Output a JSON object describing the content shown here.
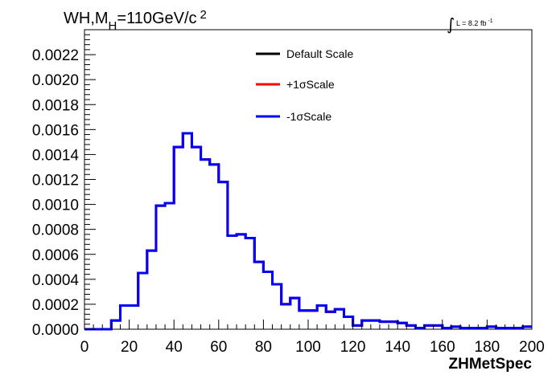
{
  "chart_data": {
    "type": "line",
    "title": "WH,M",
    "title_sub": "H",
    "title_rest": "=110GeV/c",
    "title_sup": "2",
    "lumi_label": "L = 8.2 fb",
    "lumi_sup": "-1",
    "xlabel": "ZHMetSpec",
    "ylabel": "",
    "xlim": [
      0,
      200
    ],
    "ylim": [
      0,
      0.0024
    ],
    "x_ticks": [
      0,
      20,
      40,
      60,
      80,
      100,
      120,
      140,
      160,
      180,
      200
    ],
    "x_tick_labels": [
      "0",
      "20",
      "40",
      "60",
      "80",
      "100",
      "120",
      "140",
      "160",
      "180",
      "200"
    ],
    "y_ticks": [
      0,
      0.0002,
      0.0004,
      0.0006,
      0.0008,
      0.001,
      0.0012,
      0.0014,
      0.0016,
      0.0018,
      0.002,
      0.0022
    ],
    "y_tick_labels": [
      "0.0000",
      "0.0002",
      "0.0004",
      "0.0006",
      "0.0008",
      "0.0010",
      "0.0012",
      "0.0014",
      "0.0016",
      "0.0018",
      "0.0020",
      "0.0022"
    ],
    "grid": false,
    "legend_position": "top-center",
    "bin_edges": [
      0,
      4,
      8,
      12,
      16,
      20,
      24,
      28,
      32,
      36,
      40,
      44,
      48,
      52,
      56,
      60,
      64,
      68,
      72,
      76,
      80,
      84,
      88,
      92,
      96,
      100,
      104,
      108,
      112,
      116,
      120,
      124,
      128,
      132,
      136,
      140,
      144,
      148,
      152,
      156,
      160,
      164,
      168,
      172,
      176,
      180,
      184,
      188,
      192,
      196,
      200
    ],
    "series": [
      {
        "name": "Default Scale",
        "color": "#000000",
        "values": [
          0,
          0,
          0,
          7e-05,
          0.00019,
          0.00019,
          0.00045,
          0.00063,
          0.00099,
          0.00101,
          0.00146,
          0.00157,
          0.00146,
          0.00136,
          0.00132,
          0.00118,
          0.00075,
          0.00076,
          0.00073,
          0.00054,
          0.00046,
          0.00036,
          0.0002,
          0.00025,
          0.00015,
          0.00015,
          0.00019,
          0.00014,
          0.00016,
          0.0001,
          3e-05,
          7e-05,
          7e-05,
          6e-05,
          6e-05,
          5e-05,
          3e-05,
          1e-05,
          3e-05,
          3e-05,
          1e-05,
          2e-05,
          1e-05,
          1e-05,
          1e-05,
          2e-05,
          1e-05,
          1e-05,
          1e-05,
          2e-05
        ]
      },
      {
        "name": "+1σScale",
        "color": "#ff0000",
        "values": [
          0,
          0,
          0,
          7e-05,
          0.00019,
          0.00019,
          0.00045,
          0.00063,
          0.00099,
          0.00101,
          0.00146,
          0.00157,
          0.00146,
          0.00136,
          0.00132,
          0.00118,
          0.00075,
          0.00076,
          0.00073,
          0.00054,
          0.00046,
          0.00036,
          0.0002,
          0.00025,
          0.00015,
          0.00015,
          0.00019,
          0.00014,
          0.00016,
          0.0001,
          3e-05,
          7e-05,
          7e-05,
          6e-05,
          6e-05,
          5e-05,
          3e-05,
          1e-05,
          3e-05,
          3e-05,
          1e-05,
          2e-05,
          1e-05,
          1e-05,
          1e-05,
          2e-05,
          1e-05,
          1e-05,
          1e-05,
          2e-05
        ]
      },
      {
        "name": "-1σScale",
        "color": "#0000ff",
        "values": [
          0,
          0,
          0,
          7e-05,
          0.00019,
          0.00019,
          0.00045,
          0.00063,
          0.00099,
          0.00101,
          0.00146,
          0.00157,
          0.00146,
          0.00136,
          0.00132,
          0.00118,
          0.00075,
          0.00076,
          0.00073,
          0.00054,
          0.00046,
          0.00036,
          0.0002,
          0.00025,
          0.00015,
          0.00015,
          0.00019,
          0.00014,
          0.00016,
          0.0001,
          3e-05,
          7e-05,
          7e-05,
          6e-05,
          6e-05,
          5e-05,
          3e-05,
          1e-05,
          3e-05,
          3e-05,
          1e-05,
          2e-05,
          1e-05,
          1e-05,
          1e-05,
          2e-05,
          1e-05,
          1e-05,
          1e-05,
          2e-05
        ]
      }
    ]
  }
}
